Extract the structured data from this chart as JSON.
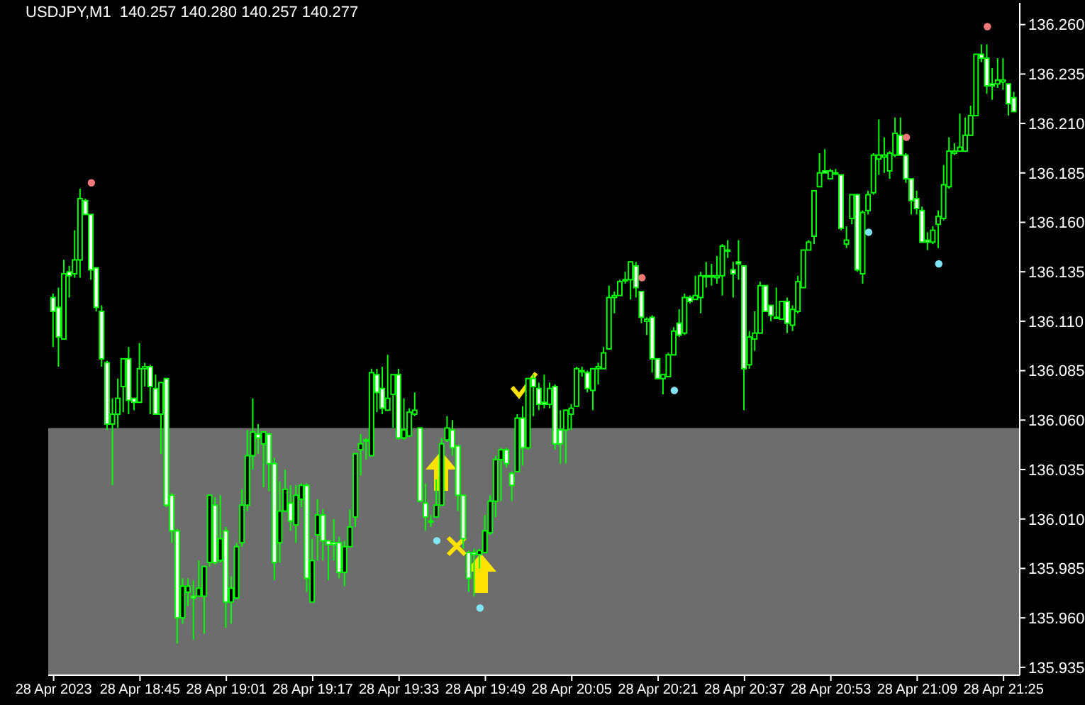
{
  "chart_data": {
    "type": "candlestick",
    "title": "USDJPY,M1  140.257 140.280 140.257 140.277",
    "color": "#00ff00",
    "marker": "circle",
    "x": [
      "2023-04-28T18:29",
      "2023-04-28T18:30",
      "2023-04-28T18:31",
      "2023-04-28T18:32",
      "2023-04-28T18:33",
      "2023-04-28T18:34",
      "2023-04-28T18:35",
      "2023-04-28T18:36",
      "2023-04-28T18:37",
      "2023-04-28T18:38",
      "2023-04-28T18:39",
      "2023-04-28T18:40",
      "2023-04-28T18:41",
      "2023-04-28T18:42",
      "2023-04-28T18:43",
      "2023-04-28T18:44",
      "2023-04-28T18:45",
      "2023-04-28T18:46",
      "2023-04-28T18:47",
      "2023-04-28T18:48",
      "2023-04-28T18:49",
      "2023-04-28T18:50",
      "2023-04-28T18:51",
      "2023-04-28T18:52",
      "2023-04-28T18:53",
      "2023-04-28T18:54",
      "2023-04-28T18:55",
      "2023-04-28T18:56",
      "2023-04-28T18:57",
      "2023-04-28T18:58",
      "2023-04-28T18:59",
      "2023-04-28T19:00",
      "2023-04-28T19:01",
      "2023-04-28T19:02",
      "2023-04-28T19:03",
      "2023-04-28T19:04",
      "2023-04-28T19:05",
      "2023-04-28T19:06",
      "2023-04-28T19:07",
      "2023-04-28T19:08",
      "2023-04-28T19:09",
      "2023-04-28T19:10",
      "2023-04-28T19:11",
      "2023-04-28T19:12",
      "2023-04-28T19:13",
      "2023-04-28T19:14",
      "2023-04-28T19:15",
      "2023-04-28T19:16",
      "2023-04-28T19:17",
      "2023-04-28T19:18",
      "2023-04-28T19:19",
      "2023-04-28T19:20",
      "2023-04-28T19:21",
      "2023-04-28T19:22",
      "2023-04-28T19:23",
      "2023-04-28T19:24",
      "2023-04-28T19:25",
      "2023-04-28T19:26",
      "2023-04-28T19:27",
      "2023-04-28T19:28",
      "2023-04-28T19:29",
      "2023-04-28T19:30",
      "2023-04-28T19:31",
      "2023-04-28T19:32",
      "2023-04-28T19:33",
      "2023-04-28T19:34",
      "2023-04-28T19:35",
      "2023-04-28T19:36",
      "2023-04-28T19:37",
      "2023-04-28T19:38",
      "2023-04-28T19:39",
      "2023-04-28T19:40",
      "2023-04-28T19:41",
      "2023-04-28T19:42",
      "2023-04-28T19:43",
      "2023-04-28T19:44",
      "2023-04-28T19:45",
      "2023-04-28T19:46",
      "2023-04-28T19:47",
      "2023-04-28T19:48",
      "2023-04-28T19:49",
      "2023-04-28T19:50",
      "2023-04-28T19:51",
      "2023-04-28T19:52",
      "2023-04-28T19:53",
      "2023-04-28T19:54",
      "2023-04-28T19:55",
      "2023-04-28T19:56",
      "2023-04-28T19:57",
      "2023-04-28T19:58",
      "2023-04-28T19:59",
      "2023-04-28T20:00",
      "2023-04-28T20:01",
      "2023-04-28T20:02",
      "2023-04-28T20:03",
      "2023-04-28T20:04",
      "2023-04-28T20:05",
      "2023-04-28T20:06",
      "2023-04-28T20:07",
      "2023-04-28T20:08",
      "2023-04-28T20:09",
      "2023-04-28T20:10",
      "2023-04-28T20:11",
      "2023-04-28T20:12",
      "2023-04-28T20:13",
      "2023-04-28T20:14",
      "2023-04-28T20:15",
      "2023-04-28T20:16",
      "2023-04-28T20:17",
      "2023-04-28T20:18",
      "2023-04-28T20:19",
      "2023-04-28T20:20",
      "2023-04-28T20:21",
      "2023-04-28T20:22",
      "2023-04-28T20:23",
      "2023-04-28T20:24",
      "2023-04-28T20:25",
      "2023-04-28T20:26",
      "2023-04-28T20:27",
      "2023-04-28T20:28",
      "2023-04-28T20:29",
      "2023-04-28T20:30",
      "2023-04-28T20:31",
      "2023-04-28T20:32",
      "2023-04-28T20:33",
      "2023-04-28T20:34",
      "2023-04-28T20:35",
      "2023-04-28T20:36",
      "2023-04-28T20:37",
      "2023-04-28T20:38",
      "2023-04-28T20:39",
      "2023-04-28T20:40",
      "2023-04-28T20:41",
      "2023-04-28T20:42",
      "2023-04-28T20:43",
      "2023-04-28T20:44",
      "2023-04-28T20:45",
      "2023-04-28T20:46",
      "2023-04-28T20:47",
      "2023-04-28T20:48",
      "2023-04-28T20:49",
      "2023-04-28T20:50",
      "2023-04-28T20:51",
      "2023-04-28T20:52",
      "2023-04-28T20:53",
      "2023-04-28T20:54",
      "2023-04-28T20:55",
      "2023-04-28T20:56",
      "2023-04-28T20:57",
      "2023-04-28T20:58",
      "2023-04-28T20:59",
      "2023-04-28T21:00",
      "2023-04-28T21:01",
      "2023-04-28T21:02",
      "2023-04-28T21:03",
      "2023-04-28T21:04",
      "2023-04-28T21:05",
      "2023-04-28T21:06",
      "2023-04-28T21:07",
      "2023-04-28T21:08",
      "2023-04-28T21:09",
      "2023-04-28T21:10",
      "2023-04-28T21:11",
      "2023-04-28T21:12",
      "2023-04-28T21:13",
      "2023-04-28T21:14",
      "2023-04-28T21:15",
      "2023-04-28T21:16",
      "2023-04-28T21:17",
      "2023-04-28T21:18",
      "2023-04-28T21:19",
      "2023-04-28T21:20",
      "2023-04-28T21:21",
      "2023-04-28T21:22",
      "2023-04-28T21:23",
      "2023-04-28T21:24",
      "2023-04-28T21:25",
      "2023-04-28T21:26",
      "2023-04-28T21:27"
    ],
    "ohlc": [
      [
        136.122,
        136.124,
        136.097,
        136.115
      ],
      [
        136.117,
        136.127,
        136.087,
        136.102
      ],
      [
        136.101,
        136.141,
        136.101,
        136.134
      ],
      [
        136.135,
        136.138,
        136.122,
        136.133
      ],
      [
        136.134,
        136.156,
        136.132,
        136.141
      ],
      [
        136.141,
        136.177,
        136.132,
        136.172
      ],
      [
        136.171,
        136.172,
        136.164,
        136.164
      ],
      [
        136.164,
        136.164,
        136.131,
        136.136
      ],
      [
        136.137,
        136.137,
        136.115,
        136.117
      ],
      [
        136.115,
        136.118,
        136.087,
        136.091
      ],
      [
        136.089,
        136.09,
        136.055,
        136.058
      ],
      [
        136.058,
        136.071,
        136.027,
        136.063
      ],
      [
        136.063,
        136.081,
        136.056,
        136.071
      ],
      [
        136.077,
        136.091,
        136.064,
        136.091
      ],
      [
        136.091,
        136.097,
        136.063,
        136.07
      ],
      [
        136.071,
        136.071,
        136.065,
        136.069
      ],
      [
        136.069,
        136.099,
        136.069,
        136.086
      ],
      [
        136.086,
        136.089,
        136.077,
        136.087
      ],
      [
        136.087,
        136.088,
        136.063,
        136.077
      ],
      [
        136.076,
        136.083,
        136.063,
        136.063
      ],
      [
        136.063,
        136.079,
        136.043,
        136.079
      ],
      [
        136.081,
        136.081,
        136.016,
        136.017
      ],
      [
        136.022,
        136.023,
        135.998,
        136.004
      ],
      [
        136.004,
        136.005,
        135.947,
        135.96
      ],
      [
        135.96,
        135.98,
        135.957,
        135.976
      ],
      [
        135.973,
        135.98,
        135.966,
        135.976
      ],
      [
        135.971,
        135.979,
        135.949,
        135.97
      ],
      [
        135.971,
        135.989,
        135.971,
        135.975
      ],
      [
        135.971,
        135.986,
        135.952,
        135.986
      ],
      [
        135.988,
        136.022,
        135.986,
        136.022
      ],
      [
        136.017,
        136.021,
        135.987,
        135.988
      ],
      [
        135.989,
        136.022,
        135.988,
        136.0
      ],
      [
        136.004,
        136.006,
        135.955,
        135.968
      ],
      [
        135.968,
        135.981,
        135.957,
        135.975
      ],
      [
        135.97,
        135.998,
        135.97,
        135.996
      ],
      [
        135.998,
        136.025,
        135.996,
        136.017
      ],
      [
        136.017,
        136.055,
        136.014,
        136.042
      ],
      [
        136.042,
        136.071,
        136.035,
        136.054
      ],
      [
        136.053,
        136.058,
        136.043,
        136.051
      ],
      [
        136.048,
        136.054,
        136.026,
        136.054
      ],
      [
        136.053,
        136.053,
        136.024,
        136.038
      ],
      [
        136.038,
        136.041,
        135.979,
        135.988
      ],
      [
        135.998,
        136.029,
        135.988,
        136.014
      ],
      [
        136.014,
        136.035,
        136.014,
        136.025
      ],
      [
        136.018,
        136.027,
        136.004,
        136.009
      ],
      [
        136.007,
        136.027,
        135.998,
        136.022
      ],
      [
        136.02,
        136.028,
        136.016,
        136.027
      ],
      [
        136.027,
        136.028,
        135.973,
        135.98
      ],
      [
        135.968,
        136.0,
        135.968,
        135.989
      ],
      [
        136.002,
        136.02,
        135.989,
        136.012
      ],
      [
        136.012,
        136.015,
        135.989,
        135.999
      ],
      [
        135.999,
        135.999,
        135.979,
        135.997
      ],
      [
        135.998,
        136.01,
        135.989,
        135.997
      ],
      [
        135.998,
        136.001,
        135.98,
        135.983
      ],
      [
        135.983,
        135.999,
        135.976,
        135.996
      ],
      [
        135.996,
        136.015,
        135.996,
        136.006
      ],
      [
        136.011,
        136.043,
        136.006,
        136.043
      ],
      [
        136.045,
        136.053,
        136.032,
        136.048
      ],
      [
        136.05,
        136.051,
        136.04,
        136.05
      ],
      [
        136.042,
        136.086,
        136.042,
        136.084
      ],
      [
        136.083,
        136.086,
        136.064,
        136.074
      ],
      [
        136.076,
        136.087,
        136.063,
        136.066
      ],
      [
        136.065,
        136.093,
        136.065,
        136.071
      ],
      [
        136.073,
        136.083,
        136.056,
        136.083
      ],
      [
        136.083,
        136.086,
        136.05,
        136.051
      ],
      [
        136.051,
        136.071,
        136.05,
        136.055
      ],
      [
        136.052,
        136.066,
        136.052,
        136.064
      ],
      [
        136.063,
        136.074,
        136.062,
        136.065
      ],
      [
        136.056,
        136.056,
        136.019,
        136.019
      ],
      [
        136.018,
        136.028,
        136.004,
        136.011
      ],
      [
        136.009,
        136.012,
        136.006,
        136.009
      ],
      [
        136.011,
        136.03,
        136.011,
        136.017
      ],
      [
        136.017,
        136.051,
        136.017,
        136.048
      ],
      [
        136.05,
        136.062,
        136.049,
        136.056
      ],
      [
        136.055,
        136.06,
        136.042,
        136.046
      ],
      [
        136.047,
        136.047,
        136.014,
        136.022
      ],
      [
        136.022,
        136.022,
        135.995,
        136.0
      ],
      [
        135.993,
        135.994,
        135.973,
        135.98
      ],
      [
        135.993,
        135.995,
        135.971,
        135.992
      ],
      [
        135.992,
        135.995,
        135.985,
        135.994
      ],
      [
        135.993,
        136.012,
        135.993,
        136.004
      ],
      [
        136.003,
        136.022,
        136.002,
        136.019
      ],
      [
        136.019,
        136.042,
        136.011,
        136.04
      ],
      [
        136.04,
        136.046,
        136.019,
        136.045
      ],
      [
        136.045,
        136.046,
        136.036,
        136.038
      ],
      [
        136.033,
        136.034,
        136.019,
        136.027
      ],
      [
        136.034,
        136.063,
        136.034,
        136.061
      ],
      [
        136.061,
        136.067,
        136.037,
        136.046
      ],
      [
        136.046,
        136.081,
        136.045,
        136.081
      ],
      [
        136.081,
        136.083,
        136.062,
        136.077
      ],
      [
        136.076,
        136.079,
        136.065,
        136.068
      ],
      [
        136.069,
        136.083,
        136.066,
        136.068
      ],
      [
        136.068,
        136.079,
        136.066,
        136.076
      ],
      [
        136.077,
        136.078,
        136.045,
        136.048
      ],
      [
        136.055,
        136.065,
        136.038,
        136.048
      ],
      [
        136.055,
        136.065,
        136.038,
        136.065
      ],
      [
        136.063,
        136.068,
        136.055,
        136.066
      ],
      [
        136.067,
        136.087,
        136.067,
        136.086
      ],
      [
        136.085,
        136.087,
        136.082,
        136.085
      ],
      [
        136.084,
        136.085,
        136.074,
        136.076
      ],
      [
        136.075,
        136.086,
        136.065,
        136.086
      ],
      [
        136.086,
        136.089,
        136.078,
        136.087
      ],
      [
        136.086,
        136.097,
        136.086,
        136.094
      ],
      [
        136.096,
        136.128,
        136.096,
        136.122
      ],
      [
        136.122,
        136.125,
        136.114,
        136.123
      ],
      [
        136.123,
        136.131,
        136.123,
        136.13
      ],
      [
        136.131,
        136.135,
        136.129,
        136.131
      ],
      [
        136.131,
        136.14,
        136.121,
        136.14
      ],
      [
        136.138,
        136.14,
        136.122,
        136.127
      ],
      [
        136.125,
        136.125,
        136.109,
        136.112
      ],
      [
        136.11,
        136.112,
        136.103,
        136.111
      ],
      [
        136.112,
        136.113,
        136.084,
        136.091
      ],
      [
        136.091,
        136.091,
        136.081,
        136.081
      ],
      [
        136.081,
        136.083,
        136.073,
        136.083
      ],
      [
        136.082,
        136.094,
        136.082,
        136.093
      ],
      [
        136.093,
        136.107,
        136.093,
        136.105
      ],
      [
        136.109,
        136.116,
        136.102,
        136.103
      ],
      [
        136.104,
        136.124,
        136.103,
        136.122
      ],
      [
        136.122,
        136.123,
        136.119,
        136.12
      ],
      [
        136.121,
        136.133,
        136.121,
        136.123
      ],
      [
        136.122,
        136.135,
        136.114,
        136.133
      ],
      [
        136.133,
        136.14,
        136.127,
        136.133
      ],
      [
        136.133,
        136.139,
        136.128,
        136.133
      ],
      [
        136.132,
        136.143,
        136.129,
        136.133
      ],
      [
        136.133,
        136.149,
        136.123,
        136.148
      ],
      [
        136.146,
        136.151,
        136.142,
        136.146
      ],
      [
        136.136,
        136.14,
        136.122,
        136.134
      ],
      [
        136.14,
        136.151,
        136.131,
        136.139
      ],
      [
        136.138,
        136.138,
        136.065,
        136.086
      ],
      [
        136.088,
        136.105,
        136.086,
        136.102
      ],
      [
        136.101,
        136.115,
        136.095,
        136.104
      ],
      [
        136.104,
        136.13,
        136.104,
        136.128
      ],
      [
        136.128,
        136.128,
        136.115,
        136.115
      ],
      [
        136.118,
        136.118,
        136.11,
        136.113
      ],
      [
        136.112,
        136.127,
        136.111,
        136.112
      ],
      [
        136.111,
        136.12,
        136.111,
        136.12
      ],
      [
        136.12,
        136.122,
        136.104,
        136.109
      ],
      [
        136.108,
        136.118,
        136.105,
        136.116
      ],
      [
        136.115,
        136.133,
        136.114,
        136.13
      ],
      [
        136.127,
        136.146,
        136.127,
        136.146
      ],
      [
        136.146,
        136.151,
        136.146,
        136.15
      ],
      [
        136.153,
        136.176,
        136.149,
        136.176
      ],
      [
        136.178,
        136.195,
        136.178,
        136.185
      ],
      [
        136.186,
        136.197,
        136.185,
        136.185
      ],
      [
        136.182,
        136.187,
        136.182,
        136.186
      ],
      [
        136.185,
        136.187,
        136.184,
        136.185
      ],
      [
        136.184,
        136.184,
        136.156,
        136.157
      ],
      [
        136.149,
        136.158,
        136.147,
        136.151
      ],
      [
        136.162,
        136.174,
        136.159,
        136.174
      ],
      [
        136.174,
        136.174,
        136.135,
        136.136
      ],
      [
        136.134,
        136.166,
        136.129,
        136.165
      ],
      [
        136.166,
        136.176,
        136.164,
        136.174
      ],
      [
        136.175,
        136.195,
        136.174,
        136.194
      ],
      [
        136.192,
        136.212,
        136.184,
        136.194
      ],
      [
        136.193,
        136.203,
        136.185,
        136.194
      ],
      [
        136.186,
        136.196,
        136.182,
        136.195
      ],
      [
        136.194,
        136.213,
        136.193,
        136.205
      ],
      [
        136.204,
        136.213,
        136.194,
        136.194
      ],
      [
        136.194,
        136.195,
        136.18,
        136.182
      ],
      [
        136.182,
        136.182,
        136.164,
        136.171
      ],
      [
        136.172,
        136.176,
        136.164,
        136.167
      ],
      [
        136.166,
        136.168,
        136.15,
        136.15
      ],
      [
        136.151,
        136.155,
        136.146,
        136.15
      ],
      [
        136.15,
        136.158,
        136.149,
        136.156
      ],
      [
        136.159,
        136.166,
        136.147,
        136.163
      ],
      [
        136.162,
        136.189,
        136.161,
        136.179
      ],
      [
        136.178,
        136.203,
        136.177,
        136.196
      ],
      [
        136.195,
        136.2,
        136.194,
        136.196
      ],
      [
        136.196,
        136.215,
        136.196,
        136.198
      ],
      [
        136.196,
        136.213,
        136.196,
        136.204
      ],
      [
        136.204,
        136.219,
        136.204,
        136.214
      ],
      [
        136.214,
        136.245,
        136.214,
        136.245
      ],
      [
        136.245,
        136.25,
        136.241,
        136.243
      ],
      [
        136.243,
        136.25,
        136.225,
        136.229
      ],
      [
        136.23,
        136.238,
        136.222,
        136.229
      ],
      [
        136.23,
        136.243,
        136.228,
        136.232
      ],
      [
        136.231,
        136.243,
        136.227,
        136.232
      ],
      [
        136.23,
        136.23,
        136.214,
        136.22
      ],
      [
        136.223,
        136.226,
        136.216,
        136.216
      ]
    ],
    "series": [
      {
        "type": "scatter",
        "color": "#f07878",
        "x": [
          "2023-04-28T18:36",
          "2023-04-28T20:18",
          "2023-04-28T21:07",
          "2023-04-28T21:22"
        ],
        "values": [
          136.18,
          136.132,
          136.203,
          136.259
        ]
      },
      {
        "type": "scatter",
        "color": "#80e4f4",
        "x": [
          "2023-04-28T19:40",
          "2023-04-28T19:48",
          "2023-04-28T20:24",
          "2023-04-28T21:00",
          "2023-04-28T21:13"
        ],
        "values": [
          135.999,
          135.965,
          136.075,
          136.155,
          136.139
        ]
      }
    ],
    "bands": [
      {
        "axis": "y",
        "from": 135.931,
        "to": 136.056,
        "color": "#6d6d6d"
      }
    ],
    "xlim": [
      "2023-04-28T18:28",
      "2023-04-28T21:28"
    ],
    "xticks": [
      {
        "value": "2023-04-28T18:29",
        "label": "28 Apr 2023"
      },
      {
        "value": "2023-04-28T18:45",
        "label": "28 Apr 18:45"
      },
      {
        "value": "2023-04-28T19:01",
        "label": "28 Apr 19:01"
      },
      {
        "value": "2023-04-28T19:17",
        "label": "28 Apr 19:17"
      },
      {
        "value": "2023-04-28T19:33",
        "label": "28 Apr 19:33"
      },
      {
        "value": "2023-04-28T19:49",
        "label": "28 Apr 19:49"
      },
      {
        "value": "2023-04-28T20:05",
        "label": "28 Apr 20:05"
      },
      {
        "value": "2023-04-28T20:21",
        "label": "28 Apr 20:21"
      },
      {
        "value": "2023-04-28T20:37",
        "label": "28 Apr 20:37"
      },
      {
        "value": "2023-04-28T20:53",
        "label": "28 Apr 20:53"
      },
      {
        "value": "2023-04-28T21:09",
        "label": "28 Apr 21:09"
      },
      {
        "value": "2023-04-28T21:25",
        "label": "28 Apr 21:25"
      }
    ],
    "ylim": [
      135.931,
      136.271
    ],
    "yticks": [
      {
        "value": 135.935,
        "label": "135.935"
      },
      {
        "value": 135.96,
        "label": "135.960"
      },
      {
        "value": 135.985,
        "label": "135.985"
      },
      {
        "value": 136.01,
        "label": "136.010"
      },
      {
        "value": 136.035,
        "label": "136.035"
      },
      {
        "value": 136.06,
        "label": "136.060"
      },
      {
        "value": 136.085,
        "label": "136.085"
      },
      {
        "value": 136.11,
        "label": "136.110"
      },
      {
        "value": 136.135,
        "label": "136.135"
      },
      {
        "value": 136.16,
        "label": "136.160"
      },
      {
        "value": 136.185,
        "label": "136.185"
      },
      {
        "value": 136.21,
        "label": "136.210"
      },
      {
        "value": 136.235,
        "label": "136.235"
      },
      {
        "value": 136.26,
        "label": "136.260"
      }
    ]
  }
}
